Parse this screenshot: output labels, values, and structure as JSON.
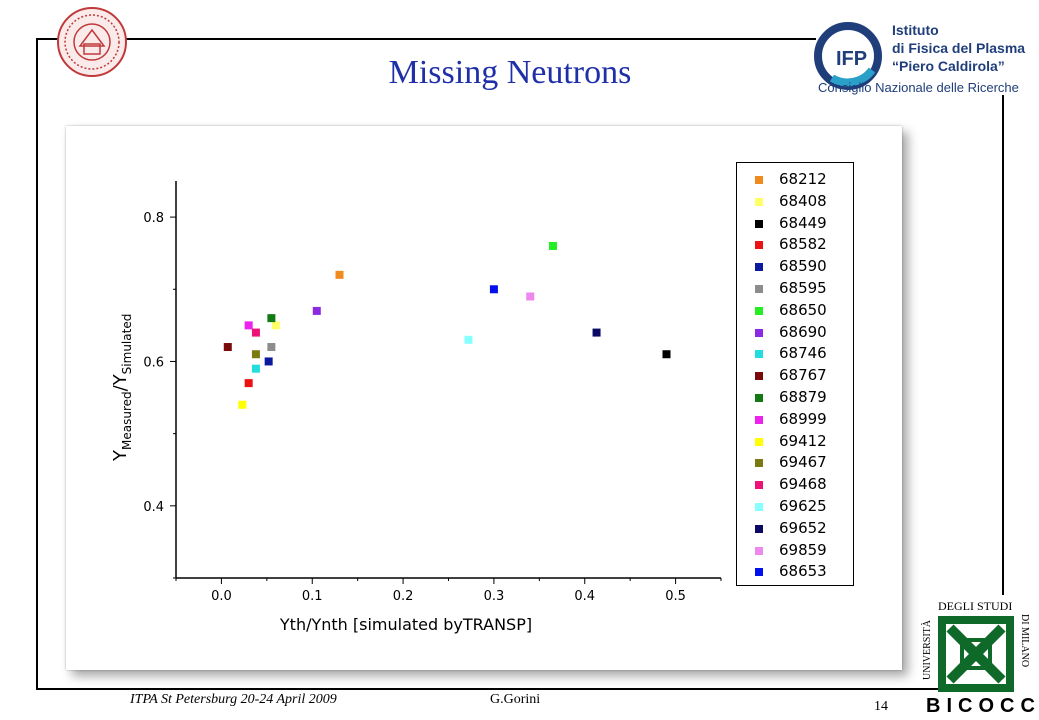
{
  "slide": {
    "title": "Missing Neutrons",
    "footer_conference": "ITPA St Petersburg 20-24 April 2009",
    "footer_author": "G.Gorini",
    "page_number": "14"
  },
  "logos": {
    "ifp_line1": "Istituto",
    "ifp_line2": "di Fisica del Plasma",
    "ifp_line3": "“Piero Caldirola”",
    "ifp_line4": "Consiglio Nazionale delle Ricerche",
    "ifp_mark": "IFP",
    "bicocca_top": "DEGLI STUDI",
    "bicocca_left": "UNIVERSITÀ",
    "bicocca_right": "DI MILANO",
    "bicocca_bottom": "BICOCCA"
  },
  "chart_data": {
    "type": "scatter",
    "title": "",
    "xlabel": "Yth/Ynth [simulated byTRANSP]",
    "ylabel": "Y",
    "ylabel_sub1": "Measured",
    "ylabel_mid": "/Y",
    "ylabel_sub2": "Simulated",
    "xlim": [
      -0.05,
      0.55
    ],
    "ylim": [
      0.3,
      0.85
    ],
    "xticks": [
      "0.0",
      "0.1",
      "0.2",
      "0.3",
      "0.4",
      "0.5"
    ],
    "yticks": [
      "0.4",
      "0.6",
      "0.8"
    ],
    "legend_position": "right",
    "series": [
      {
        "name": "68212",
        "color": "#f08a1c",
        "x": 0.13,
        "y": 0.72
      },
      {
        "name": "68408",
        "color": "#ffff66",
        "x": 0.06,
        "y": 0.65
      },
      {
        "name": "68449",
        "color": "#000000",
        "x": 0.49,
        "y": 0.61
      },
      {
        "name": "68582",
        "color": "#ee1111",
        "x": 0.03,
        "y": 0.57
      },
      {
        "name": "68590",
        "color": "#0b1a9c",
        "x": 0.052,
        "y": 0.6
      },
      {
        "name": "68595",
        "color": "#8c8c8c",
        "x": 0.055,
        "y": 0.62
      },
      {
        "name": "68650",
        "color": "#22ee22",
        "x": 0.365,
        "y": 0.76
      },
      {
        "name": "68690",
        "color": "#8a2be2",
        "x": 0.105,
        "y": 0.67
      },
      {
        "name": "68746",
        "color": "#22dddd",
        "x": 0.038,
        "y": 0.59
      },
      {
        "name": "68767",
        "color": "#7a0a0a",
        "x": 0.007,
        "y": 0.62
      },
      {
        "name": "68879",
        "color": "#127a12",
        "x": 0.055,
        "y": 0.66
      },
      {
        "name": "68999",
        "color": "#ee22ee",
        "x": 0.03,
        "y": 0.65
      },
      {
        "name": "69412",
        "color": "#ffff00",
        "x": 0.023,
        "y": 0.54
      },
      {
        "name": "69467",
        "color": "#7a7a10",
        "x": 0.038,
        "y": 0.61
      },
      {
        "name": "69468",
        "color": "#ee1177",
        "x": 0.038,
        "y": 0.64
      },
      {
        "name": "69625",
        "color": "#88ffff",
        "x": 0.272,
        "y": 0.63
      },
      {
        "name": "69652",
        "color": "#0a0a66",
        "x": 0.413,
        "y": 0.64
      },
      {
        "name": "69859",
        "color": "#ee88ee",
        "x": 0.34,
        "y": 0.69
      },
      {
        "name": "68653",
        "color": "#0011ee",
        "x": 0.3,
        "y": 0.7
      }
    ]
  }
}
